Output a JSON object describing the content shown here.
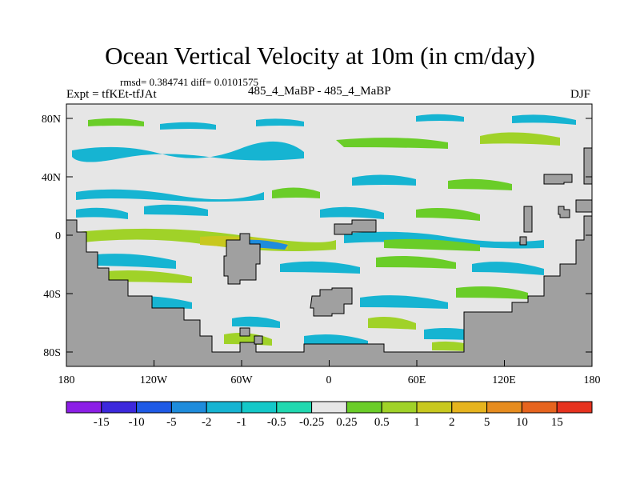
{
  "title": "Ocean Vertical Velocity at 10m (in cm/day)",
  "stats": "rmsd= 0.384741 diff= 0.0101575",
  "experiment": "Expt = tfKEt-tfJAt",
  "comparison": "485_4_MaBP - 485_4_MaBP",
  "season": "DJF",
  "lat_labels": [
    "80N",
    "40N",
    "0",
    "40S",
    "80S"
  ],
  "lon_labels": [
    "180",
    "120W",
    "60W",
    "0",
    "60E",
    "120E",
    "180"
  ],
  "colorbar": {
    "labels": [
      "-15",
      "-10",
      "-5",
      "-2",
      "-1",
      "-0.5",
      "-0.25",
      "0.25",
      "0.5",
      "1",
      "2",
      "5",
      "10",
      "15"
    ],
    "colors": [
      "#8c1ee6",
      "#3c28dc",
      "#1e5ae6",
      "#1e8cdc",
      "#16b4d2",
      "#14c8c8",
      "#20d8b0",
      "#e6e6e6",
      "#6acd28",
      "#a0d228",
      "#c8c81e",
      "#e6b41e",
      "#e68c1e",
      "#e6641e",
      "#e6321e"
    ]
  },
  "colors": {
    "land": "#a0a0a0",
    "ocean_neutral": "#e6e6e6"
  }
}
